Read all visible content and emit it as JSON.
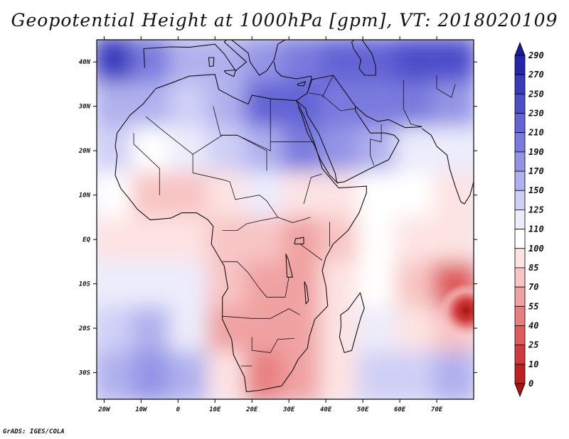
{
  "title": "Geopotential Height at 1000hPa [gpm], VT: 2018020109",
  "footer": "GrADS: IGES/COLA",
  "map": {
    "lon_range": [
      -22,
      80
    ],
    "lat_range": [
      -36,
      45
    ],
    "lon_ticks": [
      "20W",
      "10W",
      "0",
      "10E",
      "20E",
      "30E",
      "40E",
      "50E",
      "60E",
      "70E"
    ],
    "lat_ticks": [
      "40N",
      "30N",
      "20N",
      "10N",
      "EQ",
      "10S",
      "20S",
      "30S"
    ]
  },
  "colorbar": {
    "levels": [
      "290",
      "270",
      "250",
      "230",
      "210",
      "190",
      "170",
      "150",
      "125",
      "110",
      "100",
      "85",
      "70",
      "55",
      "40",
      "25",
      "10",
      "0"
    ],
    "colors": [
      "#1a1a9c",
      "#2626ad",
      "#3a3abd",
      "#4e4ecb",
      "#6464d6",
      "#7a7ade",
      "#9494e6",
      "#b0b0ee",
      "#cfcff6",
      "#ececfb",
      "#ffffff",
      "#fde3e3",
      "#f8c4c4",
      "#f0a2a2",
      "#e87f7f",
      "#de5c5c",
      "#d03a3a",
      "#bd2222",
      "#a81414"
    ]
  },
  "chart_data": {
    "type": "heatmap",
    "title": "Geopotential Height at 1000hPa [gpm], VT: 2018020109",
    "x": [
      "20W",
      "10W",
      "0",
      "10E",
      "20E",
      "30E",
      "40E",
      "50E",
      "60E",
      "70E"
    ],
    "y": [
      "40N",
      "30N",
      "20N",
      "10N",
      "EQ",
      "10S",
      "20S",
      "30S"
    ],
    "xlim": [
      -22,
      80
    ],
    "ylim": [
      -36,
      45
    ],
    "values": [
      [
        255,
        200,
        160,
        150,
        185,
        205,
        215,
        225,
        235,
        245
      ],
      [
        165,
        150,
        135,
        160,
        210,
        215,
        205,
        200,
        190,
        185
      ],
      [
        125,
        105,
        110,
        125,
        165,
        190,
        185,
        160,
        120,
        110
      ],
      [
        100,
        80,
        75,
        95,
        115,
        95,
        85,
        105,
        100,
        95
      ],
      [
        95,
        95,
        90,
        80,
        70,
        60,
        80,
        100,
        95,
        85
      ],
      [
        110,
        120,
        110,
        70,
        60,
        55,
        85,
        100,
        75,
        35
      ],
      [
        135,
        150,
        120,
        65,
        55,
        60,
        85,
        110,
        85,
        70
      ],
      [
        165,
        175,
        155,
        90,
        40,
        55,
        95,
        130,
        140,
        160
      ]
    ],
    "colorbar_levels": [
      0,
      10,
      25,
      40,
      55,
      70,
      85,
      100,
      110,
      125,
      150,
      170,
      190,
      210,
      230,
      250,
      270,
      290
    ]
  }
}
